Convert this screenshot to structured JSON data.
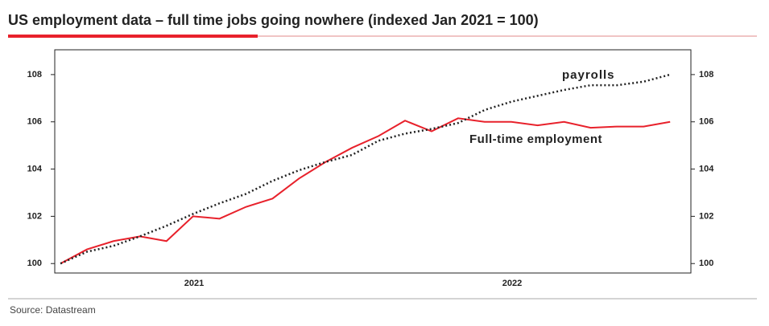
{
  "chart_data": {
    "type": "line",
    "title": "US employment data – full time jobs going nowhere (indexed Jan 2021 = 100)",
    "source": "Source: Datastream",
    "annotations": [
      "payrolls",
      "Full-time employment"
    ],
    "x": [
      2021,
      2021.0833,
      2021.1667,
      2021.25,
      2021.3333,
      2021.4167,
      2021.5,
      2021.5833,
      2021.6667,
      2021.75,
      2021.8333,
      2021.9167,
      2022,
      2022.0833,
      2022.1667,
      2022.25,
      2022.3333,
      2022.4167,
      2022.5,
      2022.5833,
      2022.6667,
      2022.75,
      2022.8333,
      2022.9167
    ],
    "series": [
      {
        "name": "Full-time employment",
        "color": "#e8212b",
        "style": "solid",
        "values": [
          100,
          100.6,
          100.95,
          101.15,
          100.95,
          102.0,
          101.9,
          102.4,
          102.75,
          103.6,
          104.3,
          104.9,
          105.4,
          106.05,
          105.6,
          106.15,
          106.0,
          106.0,
          105.85,
          106.0,
          105.75,
          105.8,
          105.8,
          106.0
        ]
      },
      {
        "name": "payrolls",
        "color": "#222222",
        "style": "dotted",
        "values": [
          100,
          100.5,
          100.75,
          101.15,
          101.6,
          102.1,
          102.55,
          102.95,
          103.5,
          103.95,
          104.3,
          104.6,
          105.2,
          105.5,
          105.7,
          105.95,
          106.5,
          106.85,
          107.1,
          107.35,
          107.55,
          107.55,
          107.7,
          108.0
        ]
      }
    ],
    "xlim": [
      2020.982,
      2022.982
    ],
    "xticks": [
      {
        "value": 2021.42,
        "label": "2021"
      },
      {
        "value": 2022.42,
        "label": "2022"
      }
    ],
    "ylim": [
      99.6,
      109.05
    ],
    "yticks": [
      100,
      102,
      104,
      106,
      108
    ],
    "grid": false
  }
}
